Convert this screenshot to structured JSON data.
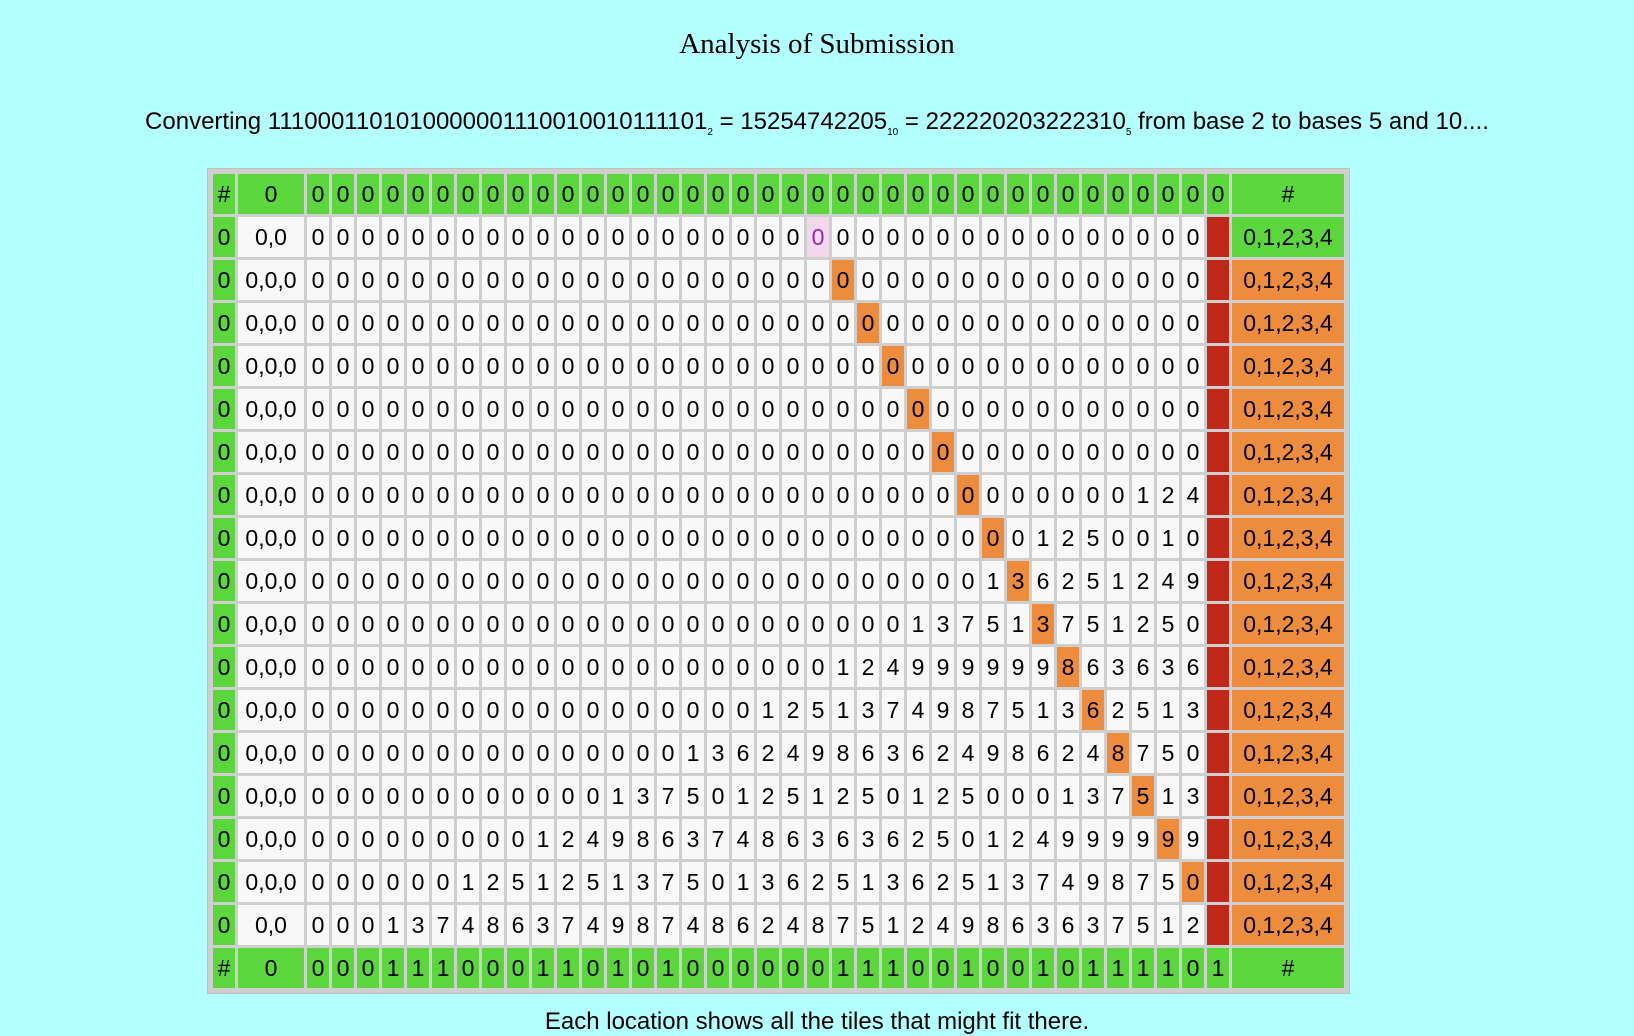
{
  "title": "Analysis of Submission",
  "conversion": {
    "prefix": "Converting ",
    "binary": "1110001101010000001110010010111101",
    "base_from": "2",
    "eq1": " = ",
    "decimal": "15254742205",
    "base_dec": "10",
    "eq2": " = ",
    "base5_value": "222220203222310",
    "base_5": "5",
    "suffix": " from base 2 to bases 5 and 10...."
  },
  "footer_text": "Each location shows all the tiles that might fit there.",
  "colors": {
    "background": "#b3ffff",
    "green": "#5bd63c",
    "cell": "#f8f8f8",
    "orange": "#ec8c3c",
    "red": "#c0281a",
    "highlight_bg": "#f2d8ec",
    "highlight_text": "#9a27a6"
  },
  "grid": {
    "top_row": {
      "edge": "#",
      "label": "0",
      "cells": "0000000000000000000000000000000000000",
      "right": "#"
    },
    "rows": [
      {
        "edge": "0",
        "label": "0,0",
        "digits": "000000000000000000000000000000000000",
        "right": "0,1,2,3,4",
        "highlight": 20,
        "right_style": "g"
      },
      {
        "edge": "0",
        "label": "0,0,0",
        "digits": "000000000000000000000000000000000000",
        "right": "0,1,2,3,4",
        "highlight": 21,
        "right_style": "o"
      },
      {
        "edge": "0",
        "label": "0,0,0",
        "digits": "000000000000000000000000000000000000",
        "right": "0,1,2,3,4",
        "highlight": 22,
        "right_style": "o"
      },
      {
        "edge": "0",
        "label": "0,0,0",
        "digits": "000000000000000000000000000000000000",
        "right": "0,1,2,3,4",
        "highlight": 23,
        "right_style": "o"
      },
      {
        "edge": "0",
        "label": "0,0,0",
        "digits": "000000000000000000000000000000000000",
        "right": "0,1,2,3,4",
        "highlight": 24,
        "right_style": "o"
      },
      {
        "edge": "0",
        "label": "0,0,0",
        "digits": "000000000000000000000000000000000000",
        "right": "0,1,2,3,4",
        "highlight": 25,
        "right_style": "o"
      },
      {
        "edge": "0",
        "label": "0,0,0",
        "digits": "000000000000000000000000000000000124",
        "right": "0,1,2,3,4",
        "highlight": 26,
        "right_style": "o"
      },
      {
        "edge": "0",
        "label": "0,0,0",
        "digits": "000000000000000000000000000001250010",
        "right": "0,1,2,3,4",
        "highlight": 27,
        "right_style": "o"
      },
      {
        "edge": "0",
        "label": "0,0,0",
        "digits": "000000000000000000000000000136251249",
        "right": "0,1,2,3,4",
        "highlight": 28,
        "right_style": "o"
      },
      {
        "edge": "0",
        "label": "0,0,0",
        "digits": "000000000000000000000000137513751250",
        "right": "0,1,2,3,4",
        "highlight": 29,
        "right_style": "o"
      },
      {
        "edge": "0",
        "label": "0,0,0",
        "digits": "000000000000000000000124999999863636",
        "right": "0,1,2,3,4",
        "highlight": 30,
        "right_style": "o"
      },
      {
        "edge": "0",
        "label": "0,0,0",
        "digits": "000000000000000000125137498751362513",
        "right": "0,1,2,3,4",
        "highlight": 31,
        "right_style": "o"
      },
      {
        "edge": "0",
        "label": "0,0,0",
        "digits": "000000000000000136249863624986248750",
        "right": "0,1,2,3,4",
        "highlight": 32,
        "right_style": "o"
      },
      {
        "edge": "0",
        "label": "0,0,0",
        "digits": "000000000000137501251250125000137513",
        "right": "0,1,2,3,4",
        "highlight": 33,
        "right_style": "o"
      },
      {
        "edge": "0",
        "label": "0,0,0",
        "digits": "000000000124986374863636250124999999",
        "right": "0,1,2,3,4",
        "highlight": 34,
        "right_style": "o"
      },
      {
        "edge": "0",
        "label": "0,0,0",
        "digits": "000000125125137501362513625137498750",
        "right": "0,1,2,3,4",
        "highlight": 35,
        "right_style": "o"
      },
      {
        "edge": "0",
        "label": "0,0",
        "digits": "000137486374987486248751249863637512",
        "right": "0,1,2,3,4",
        "highlight": -1,
        "right_style": "o"
      }
    ],
    "bottom_row": {
      "edge": "#",
      "label": "0",
      "cells": "0001110001101010000001110010010111101",
      "right": "#"
    }
  }
}
